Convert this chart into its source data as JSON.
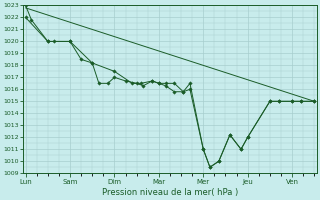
{
  "xlabel": "Pression niveau de la mer( hPa )",
  "bg_color": "#c8ecec",
  "grid_color": "#a8cece",
  "line_color": "#1a5c28",
  "ylim": [
    1009,
    1023
  ],
  "yticks": [
    1009,
    1010,
    1011,
    1012,
    1013,
    1014,
    1015,
    1016,
    1017,
    1018,
    1019,
    1020,
    1021,
    1022,
    1023
  ],
  "day_labels": [
    "Lun",
    "Sam",
    "Dim",
    "Mar",
    "Mer",
    "Jeu",
    "Ven"
  ],
  "day_positions": [
    0,
    1,
    2,
    3,
    4,
    5,
    6
  ],
  "xlim": [
    -0.05,
    6.55
  ],
  "line1_marked": {
    "x": [
      0.0,
      0.13,
      0.5,
      0.65,
      1.0,
      1.25,
      1.5,
      1.65,
      1.85,
      2.0,
      2.25,
      2.5,
      2.65,
      2.85,
      3.0,
      3.15,
      3.35,
      3.55,
      3.7,
      4.0,
      4.15,
      4.35,
      4.6,
      4.85,
      5.0,
      5.5,
      5.7,
      6.0,
      6.2,
      6.5
    ],
    "y": [
      1023.0,
      1021.8,
      1020.0,
      1020.0,
      1020.0,
      1018.5,
      1018.2,
      1016.5,
      1016.5,
      1017.0,
      1016.7,
      1016.5,
      1016.3,
      1016.7,
      1016.5,
      1016.5,
      1016.5,
      1015.8,
      1016.5,
      1011.0,
      1009.5,
      1010.0,
      1012.2,
      1011.0,
      1012.0,
      1015.0,
      1015.0,
      1015.0,
      1015.0,
      1015.0
    ]
  },
  "line2_straight": {
    "x": [
      0.0,
      6.5
    ],
    "y": [
      1022.8,
      1015.0
    ]
  },
  "line3_marked": {
    "x": [
      0.0,
      0.5,
      1.0,
      1.5,
      2.0,
      2.4,
      2.6,
      2.85,
      3.0,
      3.15,
      3.35,
      3.55,
      3.7,
      4.0,
      4.15,
      4.35,
      4.6,
      4.85,
      5.0,
      5.5,
      5.7,
      6.0,
      6.2,
      6.5
    ],
    "y": [
      1022.0,
      1020.0,
      1020.0,
      1018.2,
      1017.5,
      1016.5,
      1016.5,
      1016.7,
      1016.5,
      1016.3,
      1015.8,
      1015.8,
      1016.0,
      1011.0,
      1009.5,
      1010.0,
      1012.2,
      1011.0,
      1012.0,
      1015.0,
      1015.0,
      1015.0,
      1015.0,
      1015.0
    ]
  }
}
